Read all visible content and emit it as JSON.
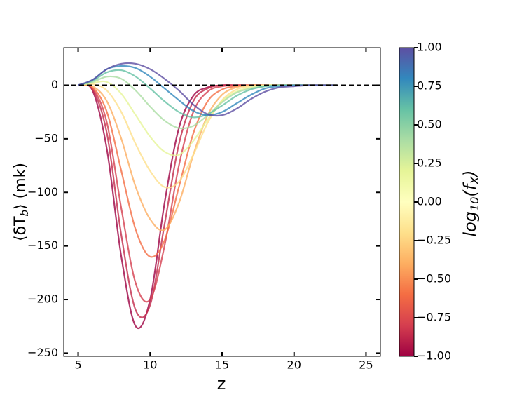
{
  "chart_data": {
    "type": "line",
    "x_label": "z",
    "y_label": {
      "main": "⟨δT",
      "sub": "b",
      "rest": "⟩ (mk)"
    },
    "x": [
      5,
      6,
      7,
      8,
      9,
      10,
      11,
      12,
      13,
      14,
      15,
      16,
      17,
      18,
      19,
      20,
      21,
      22,
      23
    ],
    "series": [
      {
        "color": "#9e0142",
        "values": [
          0,
          -5,
          -60,
          -160,
          -225,
          -200,
          -110,
          -40,
          -10,
          -2,
          0,
          0,
          0,
          0,
          0,
          0,
          0,
          0,
          0
        ]
      },
      {
        "color": "#c2294a",
        "values": [
          0,
          -4,
          -45,
          -140,
          -210,
          -205,
          -130,
          -55,
          -15,
          -3,
          0,
          0,
          0,
          0,
          0,
          0,
          0,
          0,
          0
        ]
      },
      {
        "color": "#d53e4f",
        "values": [
          0,
          -3,
          -35,
          -115,
          -185,
          -200,
          -150,
          -75,
          -25,
          -6,
          -1,
          0,
          0,
          0,
          0,
          0,
          0,
          0,
          0
        ]
      },
      {
        "color": "#f46d43",
        "values": [
          0,
          -2,
          -25,
          -80,
          -135,
          -160,
          -145,
          -95,
          -45,
          -15,
          -4,
          -1,
          0,
          0,
          0,
          0,
          0,
          0,
          0
        ]
      },
      {
        "color": "#fdae61",
        "values": [
          0,
          -1,
          -15,
          -50,
          -95,
          -125,
          -135,
          -110,
          -65,
          -28,
          -9,
          -2,
          0,
          0,
          0,
          0,
          0,
          0,
          0
        ]
      },
      {
        "color": "#fee08b",
        "values": [
          0,
          1,
          -5,
          -25,
          -55,
          -80,
          -95,
          -90,
          -65,
          -35,
          -14,
          -4,
          -1,
          0,
          0,
          0,
          0,
          0,
          0
        ]
      },
      {
        "color": "#e6f598",
        "values": [
          0,
          2,
          3,
          -8,
          -28,
          -48,
          -62,
          -65,
          -52,
          -32,
          -15,
          -6,
          -2,
          0,
          0,
          0,
          0,
          0,
          0
        ]
      },
      {
        "color": "#abdda4",
        "values": [
          0,
          3,
          8,
          6,
          -5,
          -20,
          -33,
          -40,
          -38,
          -28,
          -16,
          -7,
          -3,
          -1,
          0,
          0,
          0,
          0,
          0
        ]
      },
      {
        "color": "#66c2a5",
        "values": [
          0,
          4,
          12,
          14,
          8,
          -3,
          -15,
          -25,
          -30,
          -27,
          -19,
          -10,
          -4,
          -1,
          0,
          0,
          0,
          0,
          0
        ]
      },
      {
        "color": "#3288bd",
        "values": [
          0,
          5,
          15,
          18,
          16,
          8,
          -3,
          -14,
          -24,
          -28,
          -25,
          -17,
          -9,
          -3,
          -1,
          0,
          0,
          0,
          0
        ]
      },
      {
        "color": "#5e4fa2",
        "values": [
          0,
          5,
          15,
          20,
          20,
          15,
          6,
          -5,
          -18,
          -27,
          -28,
          -22,
          -13,
          -6,
          -2,
          -1,
          0,
          0,
          0
        ]
      }
    ],
    "xlim": [
      4,
      26
    ],
    "xticks": [
      5,
      10,
      15,
      20,
      25
    ],
    "ylim": [
      -253,
      35
    ],
    "yticks": [
      0,
      {
        "value": -50,
        "label": "−50"
      },
      {
        "value": -100,
        "label": "−100"
      },
      {
        "value": -150,
        "label": "−150"
      },
      {
        "value": -200,
        "label": "−200"
      },
      {
        "value": -250,
        "label": "−250"
      }
    ],
    "zero_line": 0,
    "colorbar_label": {
      "main": "log",
      "sub": "10",
      "mid": "(f",
      "sub2": "X",
      "end": ")"
    },
    "clim": [
      -1,
      1
    ],
    "colorbar_colors": [
      "#9e0142",
      "#d53e4f",
      "#f46d43",
      "#fdae61",
      "#fee08b",
      "#ffffbf",
      "#e6f598",
      "#abdda4",
      "#66c2a5",
      "#3288bd",
      "#5e4fa2"
    ],
    "colorbar_ticks": [
      {
        "value": 1,
        "label": "1.00"
      },
      {
        "value": 0.75,
        "label": "0.75"
      },
      {
        "value": 0.5,
        "label": "0.50"
      },
      {
        "value": 0.25,
        "label": "0.25"
      },
      {
        "value": 0,
        "label": "0.00"
      },
      {
        "value": -0.25,
        "label": "−0.25"
      },
      {
        "value": -0.5,
        "label": "−0.50"
      },
      {
        "value": -0.75,
        "label": "−0.75"
      },
      {
        "value": -1,
        "label": "−1.00"
      }
    ]
  }
}
